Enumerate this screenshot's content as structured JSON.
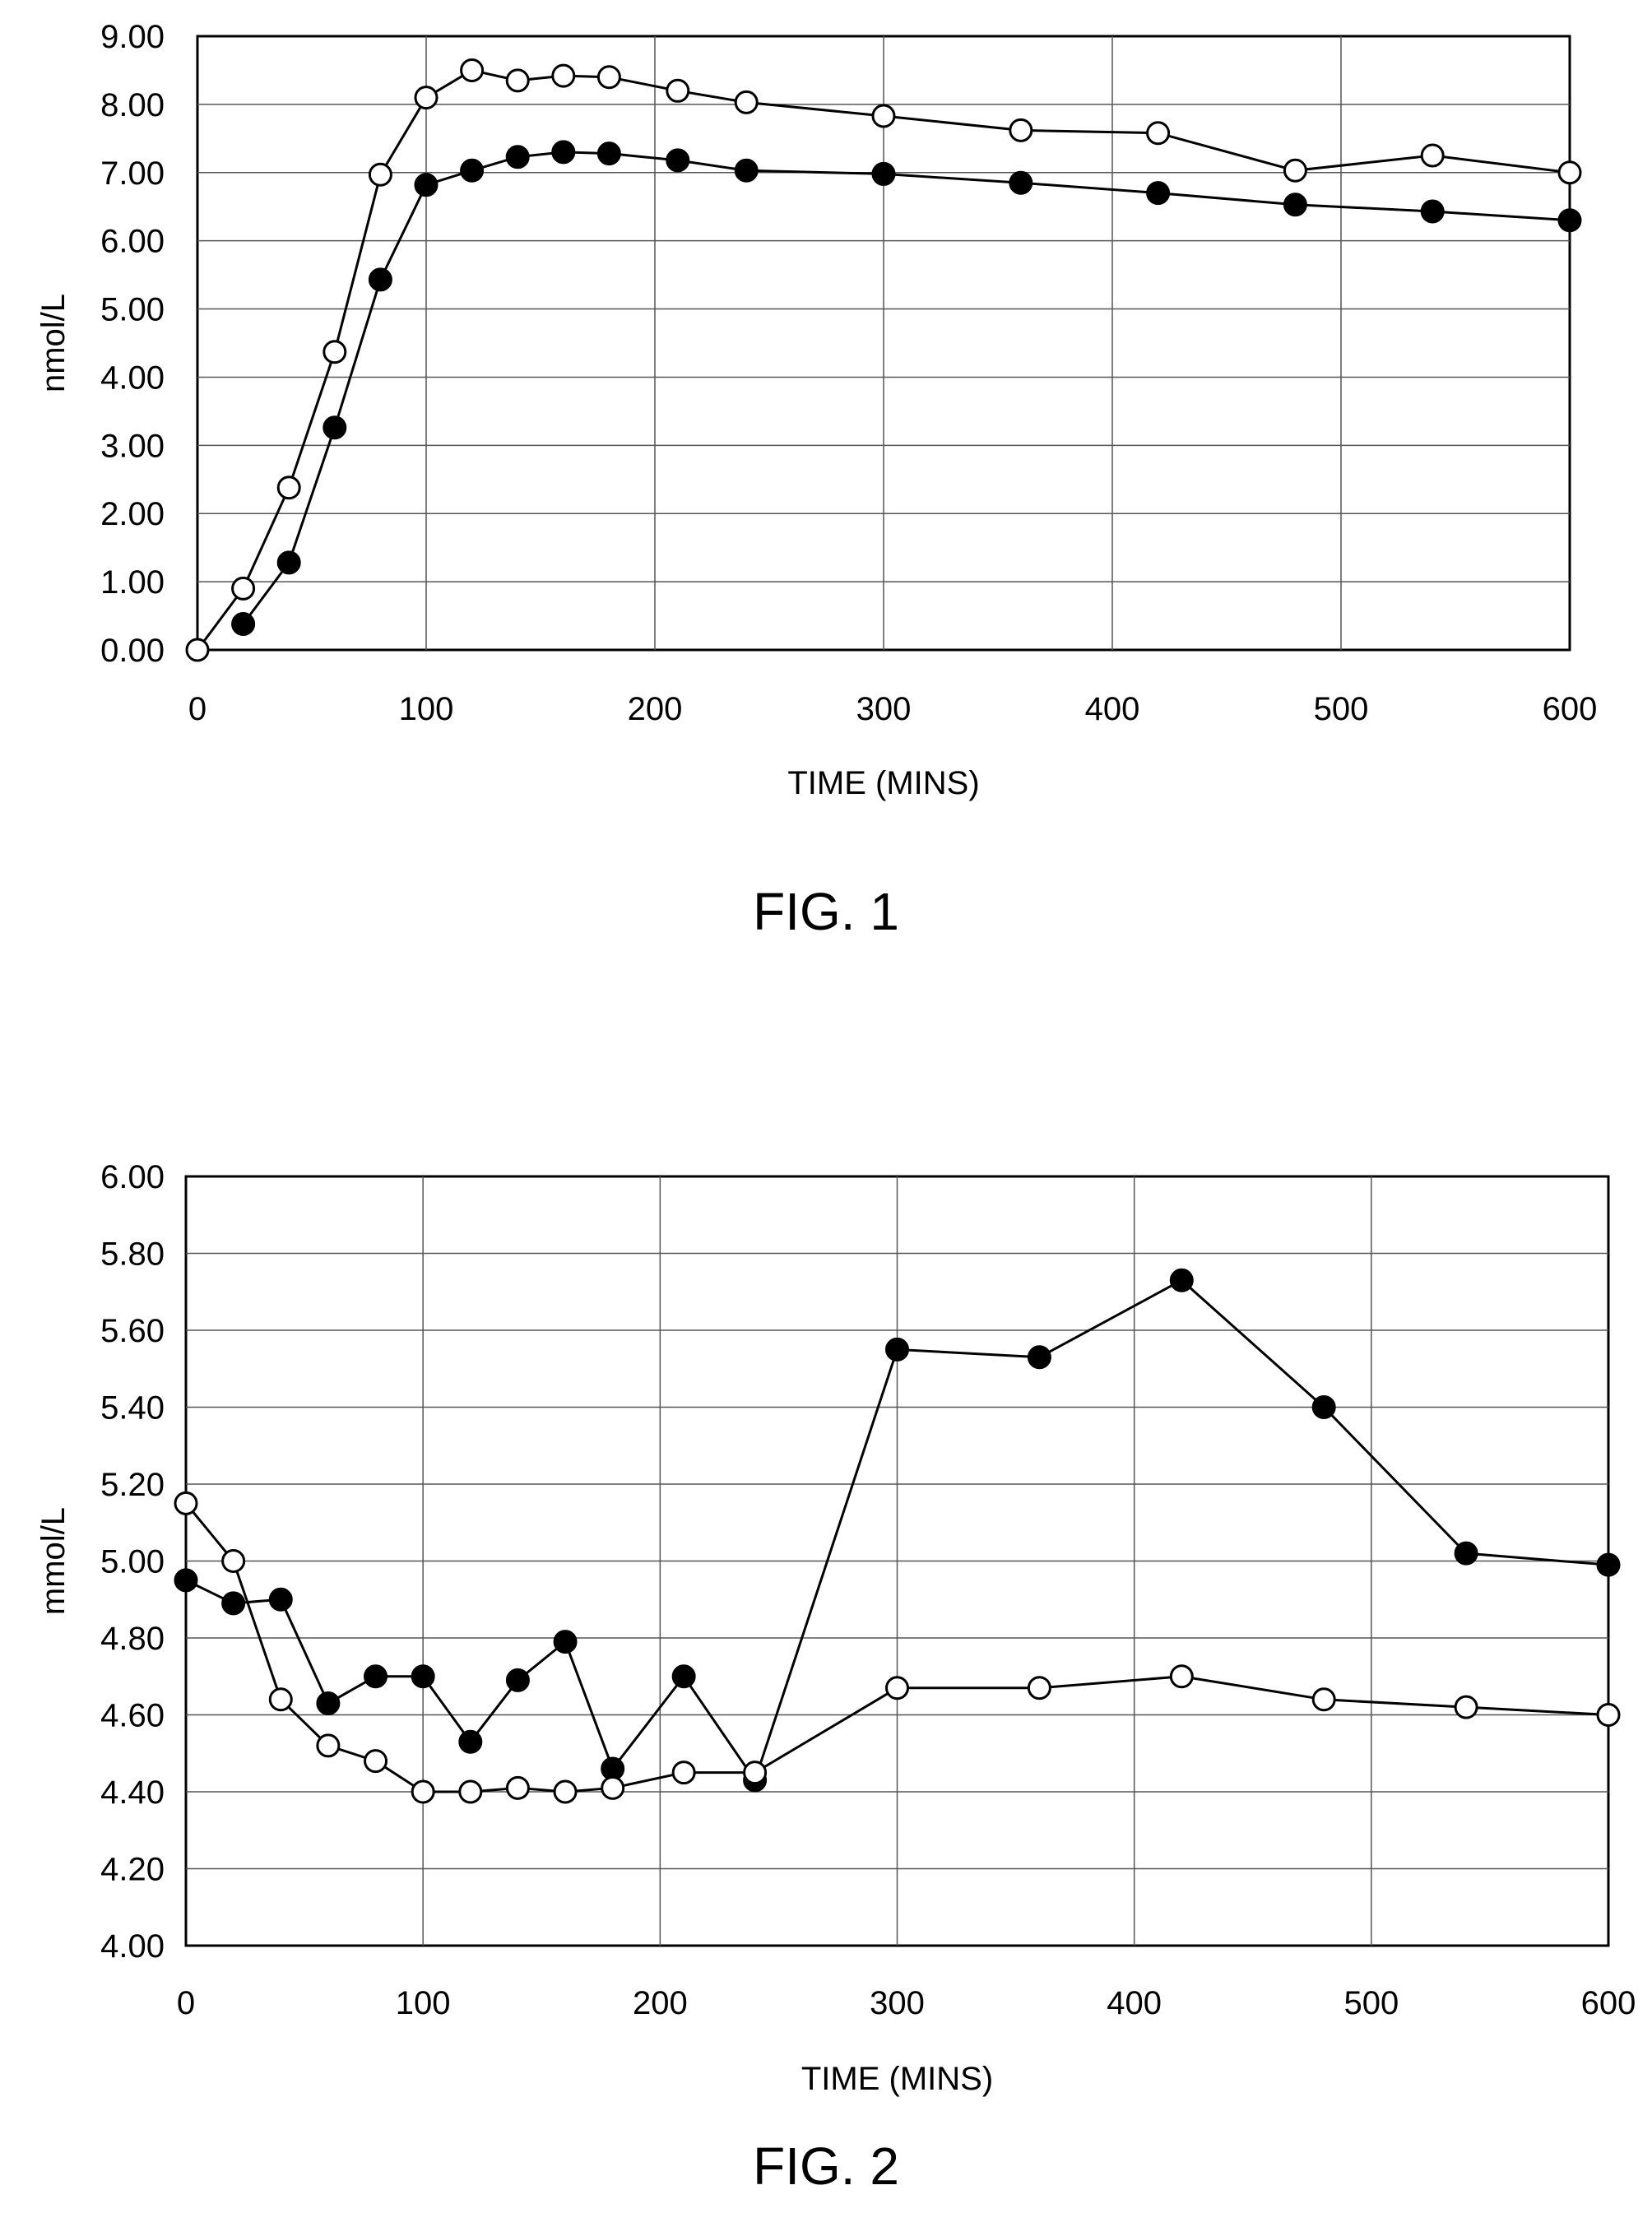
{
  "chart_data": [
    {
      "type": "line",
      "figure_label": "FIG. 1",
      "title": "",
      "xlabel": "TIME (MINS)",
      "ylabel": "nmol/L",
      "xlim": [
        0,
        600
      ],
      "ylim": [
        0,
        9
      ],
      "xticks": [
        "0",
        "100",
        "200",
        "300",
        "400",
        "500",
        "600"
      ],
      "yticks": [
        "0.00",
        "1.00",
        "2.00",
        "3.00",
        "4.00",
        "5.00",
        "6.00",
        "7.00",
        "8.00",
        "9.00"
      ],
      "grid": true,
      "series": [
        {
          "marker": "open-circle",
          "x": [
            0,
            20,
            40,
            60,
            80,
            100,
            120,
            140,
            160,
            180,
            210,
            240,
            300,
            360,
            420,
            480,
            540,
            600
          ],
          "y": [
            0.0,
            0.9,
            2.38,
            4.37,
            6.97,
            8.1,
            8.5,
            8.35,
            8.42,
            8.4,
            8.2,
            8.03,
            7.83,
            7.62,
            7.58,
            7.03,
            7.25,
            7.0
          ]
        },
        {
          "marker": "filled-circle",
          "x": [
            20,
            40,
            60,
            80,
            100,
            120,
            140,
            160,
            180,
            210,
            240,
            300,
            360,
            420,
            480,
            540,
            600
          ],
          "y": [
            0.38,
            1.28,
            3.26,
            5.43,
            6.82,
            7.03,
            7.23,
            7.3,
            7.28,
            7.18,
            7.03,
            6.98,
            6.85,
            6.7,
            6.53,
            6.43,
            6.3
          ]
        }
      ]
    },
    {
      "type": "line",
      "figure_label": "FIG. 2",
      "title": "",
      "xlabel": "TIME (MINS)",
      "ylabel": "mmol/L",
      "xlim": [
        0,
        600
      ],
      "ylim": [
        4.0,
        6.0
      ],
      "xticks": [
        "0",
        "100",
        "200",
        "300",
        "400",
        "500",
        "600"
      ],
      "yticks": [
        "4.00",
        "4.20",
        "4.40",
        "4.60",
        "4.80",
        "5.00",
        "5.20",
        "5.40",
        "5.60",
        "5.80",
        "6.00"
      ],
      "grid": true,
      "series": [
        {
          "marker": "filled-circle",
          "x": [
            0,
            20,
            40,
            60,
            80,
            100,
            120,
            140,
            160,
            180,
            210,
            240,
            300,
            360,
            420,
            480,
            540,
            600
          ],
          "y": [
            4.95,
            4.89,
            4.9,
            4.63,
            4.7,
            4.7,
            4.53,
            4.69,
            4.79,
            4.46,
            4.7,
            4.43,
            5.55,
            5.53,
            5.73,
            5.4,
            5.02,
            4.99
          ]
        },
        {
          "marker": "open-circle",
          "x": [
            0,
            20,
            40,
            60,
            80,
            100,
            120,
            140,
            160,
            180,
            210,
            240,
            300,
            360,
            420,
            480,
            540,
            600
          ],
          "y": [
            5.15,
            5.0,
            4.64,
            4.52,
            4.48,
            4.4,
            4.4,
            4.41,
            4.4,
            4.41,
            4.45,
            4.45,
            4.67,
            4.67,
            4.7,
            4.64,
            4.62,
            4.6
          ]
        }
      ]
    }
  ]
}
